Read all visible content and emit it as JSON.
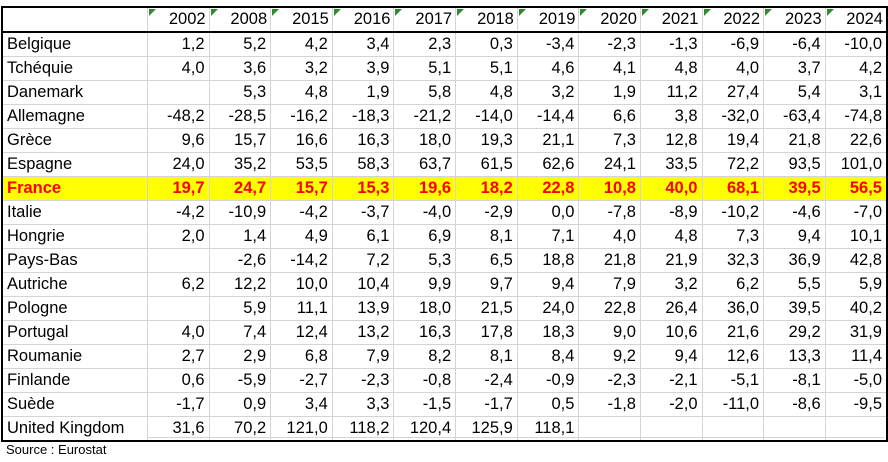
{
  "table": {
    "corner": "",
    "years": [
      "2002",
      "2008",
      "2015",
      "2016",
      "2017",
      "2018",
      "2019",
      "2020",
      "2021",
      "2022",
      "2023",
      "2024"
    ],
    "rows": [
      {
        "country": "Belgique",
        "values": [
          "1,2",
          "5,2",
          "4,2",
          "3,4",
          "2,3",
          "0,3",
          "-3,4",
          "-2,3",
          "-1,3",
          "-6,9",
          "-6,4",
          "-10,0"
        ]
      },
      {
        "country": "Tchéquie",
        "values": [
          "4,0",
          "3,6",
          "3,2",
          "3,9",
          "5,1",
          "5,1",
          "4,6",
          "4,1",
          "4,8",
          "4,0",
          "3,7",
          "4,2"
        ]
      },
      {
        "country": "Danemark",
        "values": [
          "",
          "5,3",
          "4,8",
          "1,9",
          "5,8",
          "4,8",
          "3,2",
          "1,9",
          "11,2",
          "27,4",
          "5,4",
          "3,1"
        ]
      },
      {
        "country": "Allemagne",
        "values": [
          "-48,2",
          "-28,5",
          "-16,2",
          "-18,3",
          "-21,2",
          "-14,0",
          "-14,4",
          "6,6",
          "3,8",
          "-32,0",
          "-63,4",
          "-74,8"
        ]
      },
      {
        "country": "Grèce",
        "values": [
          "9,6",
          "15,7",
          "16,6",
          "16,3",
          "18,0",
          "19,3",
          "21,1",
          "7,3",
          "12,8",
          "19,4",
          "21,8",
          "22,6"
        ]
      },
      {
        "country": "Espagne",
        "values": [
          "24,0",
          "35,2",
          "53,5",
          "58,3",
          "63,7",
          "61,5",
          "62,6",
          "24,1",
          "33,5",
          "72,2",
          "93,5",
          "101,0"
        ]
      },
      {
        "country": "France",
        "highlight": true,
        "values": [
          "19,7",
          "24,7",
          "15,7",
          "15,3",
          "19,6",
          "18,2",
          "22,8",
          "10,8",
          "40,0",
          "68,1",
          "39,5",
          "56,5"
        ]
      },
      {
        "country": "Italie",
        "values": [
          "-4,2",
          "-10,9",
          "-4,2",
          "-3,7",
          "-4,0",
          "-2,9",
          "0,0",
          "-7,8",
          "-8,9",
          "-10,2",
          "-4,6",
          "-7,0"
        ]
      },
      {
        "country": "Hongrie",
        "values": [
          "2,0",
          "1,4",
          "4,9",
          "6,1",
          "6,9",
          "8,1",
          "7,1",
          "4,0",
          "4,8",
          "7,3",
          "9,4",
          "10,1"
        ]
      },
      {
        "country": "Pays-Bas",
        "values": [
          "",
          "-2,6",
          "-14,2",
          "7,2",
          "5,3",
          "6,5",
          "18,8",
          "21,8",
          "21,9",
          "32,3",
          "36,9",
          "42,8"
        ]
      },
      {
        "country": "Autriche",
        "values": [
          "6,2",
          "12,2",
          "10,0",
          "10,4",
          "9,9",
          "9,7",
          "9,4",
          "7,9",
          "3,2",
          "6,2",
          "5,5",
          "5,9"
        ]
      },
      {
        "country": "Pologne",
        "values": [
          "",
          "5,9",
          "11,1",
          "13,9",
          "18,0",
          "21,5",
          "24,0",
          "22,8",
          "26,4",
          "36,0",
          "39,5",
          "40,2"
        ]
      },
      {
        "country": "Portugal",
        "values": [
          "4,0",
          "7,4",
          "12,4",
          "13,2",
          "16,3",
          "17,8",
          "18,3",
          "9,0",
          "10,6",
          "21,6",
          "29,2",
          "31,9"
        ]
      },
      {
        "country": "Roumanie",
        "values": [
          "2,7",
          "2,9",
          "6,8",
          "7,9",
          "8,2",
          "8,1",
          "8,4",
          "9,2",
          "9,4",
          "12,6",
          "13,3",
          "11,4"
        ]
      },
      {
        "country": "Finlande",
        "values": [
          "0,6",
          "-5,9",
          "-2,7",
          "-2,3",
          "-0,8",
          "-2,4",
          "-0,9",
          "-2,3",
          "-2,1",
          "-5,1",
          "-8,1",
          "-5,0"
        ]
      },
      {
        "country": "Suède",
        "values": [
          "-1,7",
          "0,9",
          "3,4",
          "3,3",
          "-1,5",
          "-1,7",
          "0,5",
          "-1,8",
          "-2,0",
          "-11,0",
          "-8,6",
          "-9,5"
        ]
      },
      {
        "country": "United Kingdom",
        "values": [
          "31,6",
          "70,2",
          "121,0",
          "118,2",
          "120,4",
          "125,9",
          "118,1",
          "",
          "",
          "",
          "",
          ""
        ]
      }
    ]
  },
  "source": "Source : Eurostat",
  "colors": {
    "highlight_bg": "#ffff00",
    "highlight_text": "#ff0000",
    "marker": "#2e8b2e"
  }
}
